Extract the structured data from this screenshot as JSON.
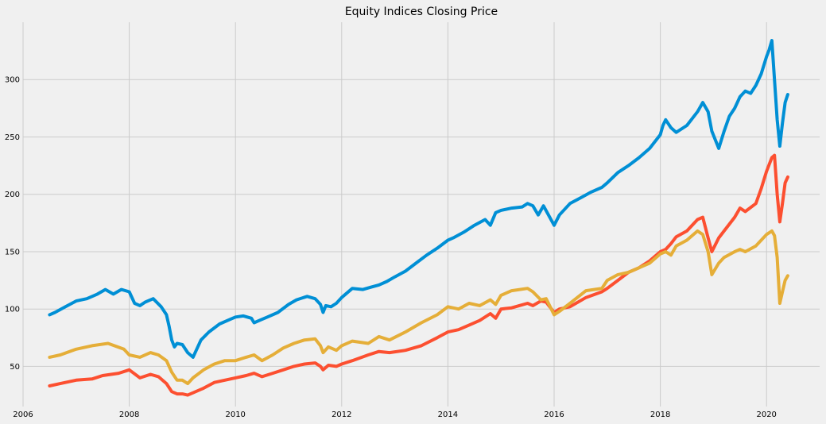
{
  "chart_data": {
    "type": "line",
    "title": "Equity Indices Closing Price",
    "xlabel": "",
    "ylabel": "",
    "xlim": [
      2006.0,
      2021.0
    ],
    "ylim": [
      15,
      350
    ],
    "grid": true,
    "legend": "none",
    "x_ticks": [
      2006,
      2008,
      2010,
      2012,
      2014,
      2016,
      2018,
      2020
    ],
    "x_tick_labels": [
      "2006",
      "2008",
      "2010",
      "2012",
      "2014",
      "2016",
      "2018",
      "2020"
    ],
    "y_ticks": [
      50,
      100,
      150,
      200,
      250,
      300
    ],
    "y_tick_labels": [
      "50",
      "100",
      "150",
      "200",
      "250",
      "300"
    ],
    "series": [
      {
        "color": "#008fd5",
        "x": [
          2006.5,
          2006.6,
          2006.8,
          2007.0,
          2007.2,
          2007.4,
          2007.55,
          2007.7,
          2007.85,
          2008.0,
          2008.1,
          2008.2,
          2008.3,
          2008.45,
          2008.6,
          2008.7,
          2008.75,
          2008.8,
          2008.85,
          2008.9,
          2009.0,
          2009.1,
          2009.2,
          2009.35,
          2009.5,
          2009.7,
          2009.9,
          2010.0,
          2010.15,
          2010.3,
          2010.35,
          2010.45,
          2010.6,
          2010.8,
          2011.0,
          2011.15,
          2011.35,
          2011.5,
          2011.6,
          2011.65,
          2011.7,
          2011.8,
          2011.9,
          2012.0,
          2012.2,
          2012.4,
          2012.55,
          2012.7,
          2012.85,
          2013.0,
          2013.2,
          2013.4,
          2013.6,
          2013.8,
          2014.0,
          2014.1,
          2014.3,
          2014.5,
          2014.7,
          2014.8,
          2014.9,
          2015.0,
          2015.2,
          2015.4,
          2015.5,
          2015.6,
          2015.7,
          2015.8,
          2016.0,
          2016.1,
          2016.3,
          2016.5,
          2016.7,
          2016.9,
          2017.0,
          2017.2,
          2017.4,
          2017.6,
          2017.8,
          2018.0,
          2018.05,
          2018.1,
          2018.2,
          2018.3,
          2018.5,
          2018.7,
          2018.8,
          2018.9,
          2018.97,
          2019.1,
          2019.2,
          2019.3,
          2019.4,
          2019.5,
          2019.6,
          2019.7,
          2019.8,
          2019.9,
          2020.0,
          2020.05,
          2020.1,
          2020.15,
          2020.2,
          2020.25,
          2020.3,
          2020.35,
          2020.4
        ],
        "y": [
          95,
          97,
          102,
          107,
          109,
          113,
          117,
          113,
          117,
          115,
          105,
          103,
          106,
          109,
          102,
          95,
          85,
          73,
          67,
          70,
          69,
          62,
          58,
          73,
          80,
          87,
          91,
          93,
          94,
          92,
          88,
          90,
          93,
          97,
          104,
          108,
          111,
          109,
          104,
          97,
          103,
          102,
          105,
          110,
          118,
          117,
          119,
          121,
          124,
          128,
          133,
          140,
          147,
          153,
          160,
          162,
          167,
          173,
          178,
          173,
          184,
          186,
          188,
          189,
          192,
          190,
          182,
          190,
          173,
          182,
          192,
          197,
          202,
          206,
          210,
          219,
          225,
          232,
          240,
          252,
          260,
          265,
          258,
          254,
          260,
          272,
          280,
          272,
          255,
          240,
          255,
          268,
          275,
          285,
          290,
          288,
          295,
          305,
          320,
          326,
          334,
          300,
          265,
          242,
          262,
          280,
          287
        ]
      },
      {
        "color": "#fc4f30",
        "x": [
          2006.5,
          2006.7,
          2007.0,
          2007.3,
          2007.5,
          2007.8,
          2008.0,
          2008.2,
          2008.4,
          2008.55,
          2008.7,
          2008.8,
          2008.9,
          2009.0,
          2009.1,
          2009.2,
          2009.4,
          2009.6,
          2009.8,
          2010.0,
          2010.2,
          2010.35,
          2010.5,
          2010.7,
          2010.9,
          2011.1,
          2011.3,
          2011.5,
          2011.6,
          2011.65,
          2011.75,
          2011.9,
          2012.0,
          2012.2,
          2012.5,
          2012.7,
          2012.9,
          2013.2,
          2013.5,
          2013.8,
          2014.0,
          2014.2,
          2014.4,
          2014.6,
          2014.8,
          2014.9,
          2015.0,
          2015.2,
          2015.5,
          2015.6,
          2015.75,
          2015.85,
          2016.0,
          2016.1,
          2016.3,
          2016.6,
          2016.9,
          2017.0,
          2017.2,
          2017.4,
          2017.6,
          2017.8,
          2018.0,
          2018.1,
          2018.2,
          2018.3,
          2018.5,
          2018.7,
          2018.8,
          2018.9,
          2018.97,
          2019.1,
          2019.2,
          2019.4,
          2019.5,
          2019.6,
          2019.8,
          2019.9,
          2020.0,
          2020.1,
          2020.15,
          2020.2,
          2020.25,
          2020.3,
          2020.35,
          2020.4
        ],
        "y": [
          33,
          35,
          38,
          39,
          42,
          44,
          47,
          40,
          43,
          41,
          35,
          28,
          26,
          26,
          25,
          27,
          31,
          36,
          38,
          40,
          42,
          44,
          41,
          44,
          47,
          50,
          52,
          53,
          50,
          47,
          51,
          50,
          52,
          55,
          60,
          63,
          62,
          64,
          68,
          75,
          80,
          82,
          86,
          90,
          96,
          92,
          100,
          101,
          105,
          103,
          107,
          106,
          97,
          100,
          102,
          110,
          115,
          118,
          125,
          132,
          136,
          142,
          150,
          152,
          157,
          163,
          168,
          178,
          180,
          162,
          150,
          162,
          168,
          180,
          188,
          185,
          192,
          205,
          220,
          232,
          234,
          200,
          176,
          192,
          210,
          215
        ]
      },
      {
        "color": "#e5ae38",
        "x": [
          2006.5,
          2006.7,
          2007.0,
          2007.3,
          2007.6,
          2007.9,
          2008.0,
          2008.2,
          2008.4,
          2008.55,
          2008.7,
          2008.8,
          2008.9,
          2009.0,
          2009.1,
          2009.2,
          2009.4,
          2009.6,
          2009.8,
          2010.0,
          2010.2,
          2010.35,
          2010.5,
          2010.7,
          2010.9,
          2011.1,
          2011.3,
          2011.5,
          2011.6,
          2011.65,
          2011.75,
          2011.9,
          2012.0,
          2012.2,
          2012.5,
          2012.7,
          2012.9,
          2013.2,
          2013.5,
          2013.8,
          2014.0,
          2014.2,
          2014.4,
          2014.6,
          2014.8,
          2014.9,
          2015.0,
          2015.2,
          2015.5,
          2015.6,
          2015.75,
          2015.85,
          2016.0,
          2016.1,
          2016.3,
          2016.6,
          2016.9,
          2017.0,
          2017.2,
          2017.4,
          2017.6,
          2017.8,
          2018.0,
          2018.1,
          2018.2,
          2018.3,
          2018.5,
          2018.7,
          2018.8,
          2018.9,
          2018.97,
          2019.1,
          2019.2,
          2019.4,
          2019.5,
          2019.6,
          2019.8,
          2019.9,
          2020.0,
          2020.1,
          2020.15,
          2020.2,
          2020.25,
          2020.3,
          2020.35,
          2020.4
        ],
        "y": [
          58,
          60,
          65,
          68,
          70,
          65,
          60,
          58,
          62,
          60,
          55,
          45,
          38,
          38,
          35,
          40,
          47,
          52,
          55,
          55,
          58,
          60,
          55,
          60,
          66,
          70,
          73,
          74,
          68,
          62,
          67,
          64,
          68,
          72,
          70,
          76,
          73,
          80,
          88,
          95,
          102,
          100,
          105,
          103,
          108,
          104,
          112,
          116,
          118,
          115,
          108,
          109,
          95,
          98,
          105,
          116,
          118,
          125,
          130,
          132,
          136,
          140,
          148,
          150,
          147,
          155,
          160,
          168,
          165,
          150,
          130,
          140,
          145,
          150,
          152,
          150,
          155,
          160,
          165,
          168,
          164,
          145,
          105,
          115,
          125,
          129
        ]
      }
    ]
  }
}
